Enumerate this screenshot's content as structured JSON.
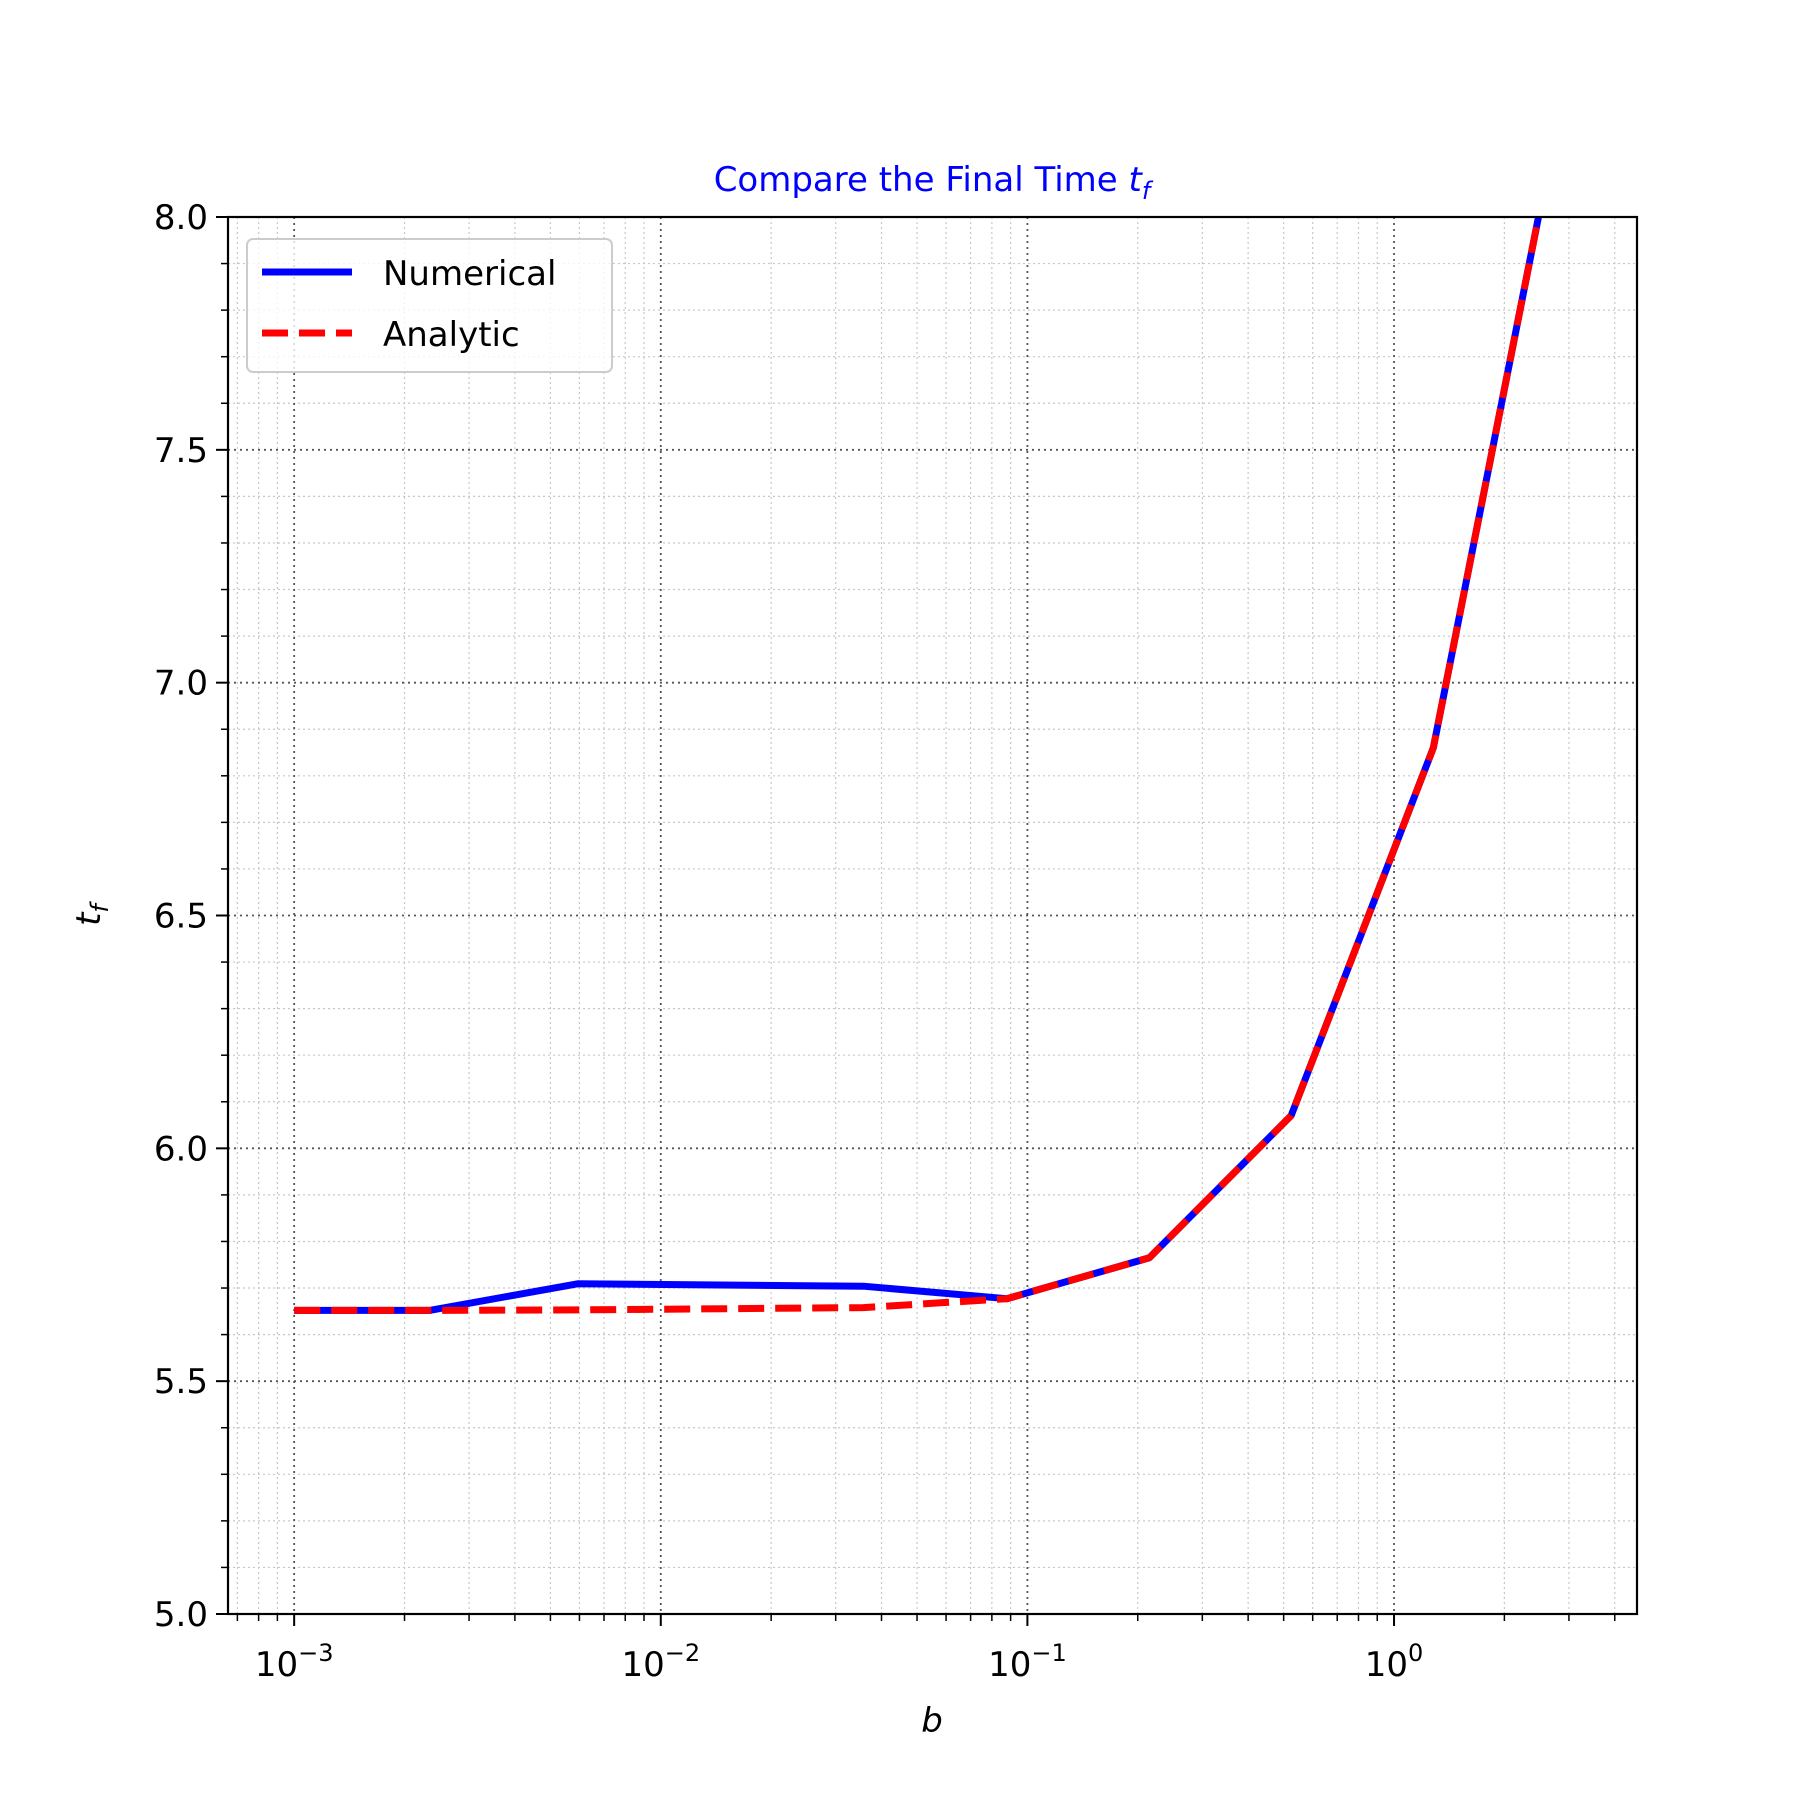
{
  "chart_data": {
    "type": "line",
    "title": "Compare the Final Time",
    "title_math": "t",
    "title_math_sub": "f",
    "title_color": "#0000ff",
    "xlabel": "b",
    "ylabel": "t",
    "ylabel_sub": "f",
    "x_scale": "log",
    "xlim": [
      0.00066,
      4.6
    ],
    "ylim": [
      5.0,
      8.0
    ],
    "x_ticks": [
      {
        "value": 0.001,
        "base": "10",
        "exp": "−3"
      },
      {
        "value": 0.01,
        "base": "10",
        "exp": "−2"
      },
      {
        "value": 0.1,
        "base": "10",
        "exp": "−1"
      },
      {
        "value": 1,
        "base": "10",
        "exp": "0"
      }
    ],
    "y_ticks": [
      "5.0",
      "5.5",
      "6.0",
      "6.5",
      "7.0",
      "7.5",
      "8.0"
    ],
    "grid": {
      "major": true,
      "minor": true,
      "style": "dotted"
    },
    "legend": {
      "placement": "top-left"
    },
    "series": [
      {
        "name": "Numerical",
        "color": "#0000ff",
        "style": "solid",
        "x": [
          0.001,
          0.00234,
          0.00593,
          0.0357,
          0.0879,
          0.215,
          0.524,
          1.28,
          2.55
        ],
        "y": [
          5.652,
          5.652,
          5.709,
          5.704,
          5.677,
          5.765,
          6.07,
          6.86,
          8.05
        ]
      },
      {
        "name": "Analytic",
        "color": "#ff0000",
        "style": "dashed",
        "x": [
          0.001,
          0.00234,
          0.00593,
          0.0357,
          0.0879,
          0.215,
          0.524,
          1.28,
          2.55
        ],
        "y": [
          5.652,
          5.652,
          5.653,
          5.658,
          5.677,
          5.765,
          6.07,
          6.86,
          8.05
        ]
      }
    ]
  }
}
